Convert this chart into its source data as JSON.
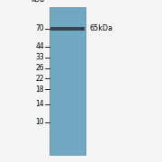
{
  "fig_width": 1.8,
  "fig_height": 1.8,
  "dpi": 100,
  "bg_color": "#f5f5f5",
  "gel_color": "#6fa8c0",
  "gel_edge_color": "#4a85a0",
  "band_color": "#2a2a3a",
  "band_alpha": 0.82,
  "label_65k_text": "65kDa",
  "label_65k_fontsize": 5.8,
  "ylabel_kda_text": "kDa",
  "tick_labels": [
    "70",
    "44",
    "33",
    "26",
    "22",
    "18",
    "14",
    "10"
  ],
  "tick_fontsize": 5.5,
  "axes_linewidth": 0.7
}
